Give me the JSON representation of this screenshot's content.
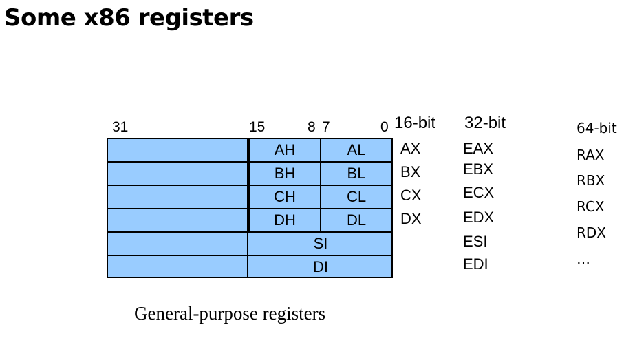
{
  "title": "Some x86 registers",
  "bit_labels": [
    "31",
    "15",
    "8",
    "7",
    "0"
  ],
  "headers": {
    "col16": "16-bit",
    "col32": "32-bit",
    "col64": "64-bit"
  },
  "rows": [
    {
      "high": "AH",
      "low": "AL",
      "r16": "AX",
      "r32": "EAX",
      "r64": "RAX"
    },
    {
      "high": "BH",
      "low": "BL",
      "r16": "BX",
      "r32": "EBX",
      "r64": "RBX"
    },
    {
      "high": "CH",
      "low": "CL",
      "r16": "CX",
      "r32": "ECX",
      "r64": "RCX"
    },
    {
      "high": "DH",
      "low": "DL",
      "r16": "DX",
      "r32": "EDX",
      "r64": "RDX"
    },
    {
      "full": "SI",
      "r32": "ESI",
      "r64": "…"
    },
    {
      "full": "DI",
      "r32": "EDI"
    }
  ],
  "caption": "General-purpose registers",
  "colors": {
    "register_fill": "#99ccff",
    "border": "#000000"
  }
}
